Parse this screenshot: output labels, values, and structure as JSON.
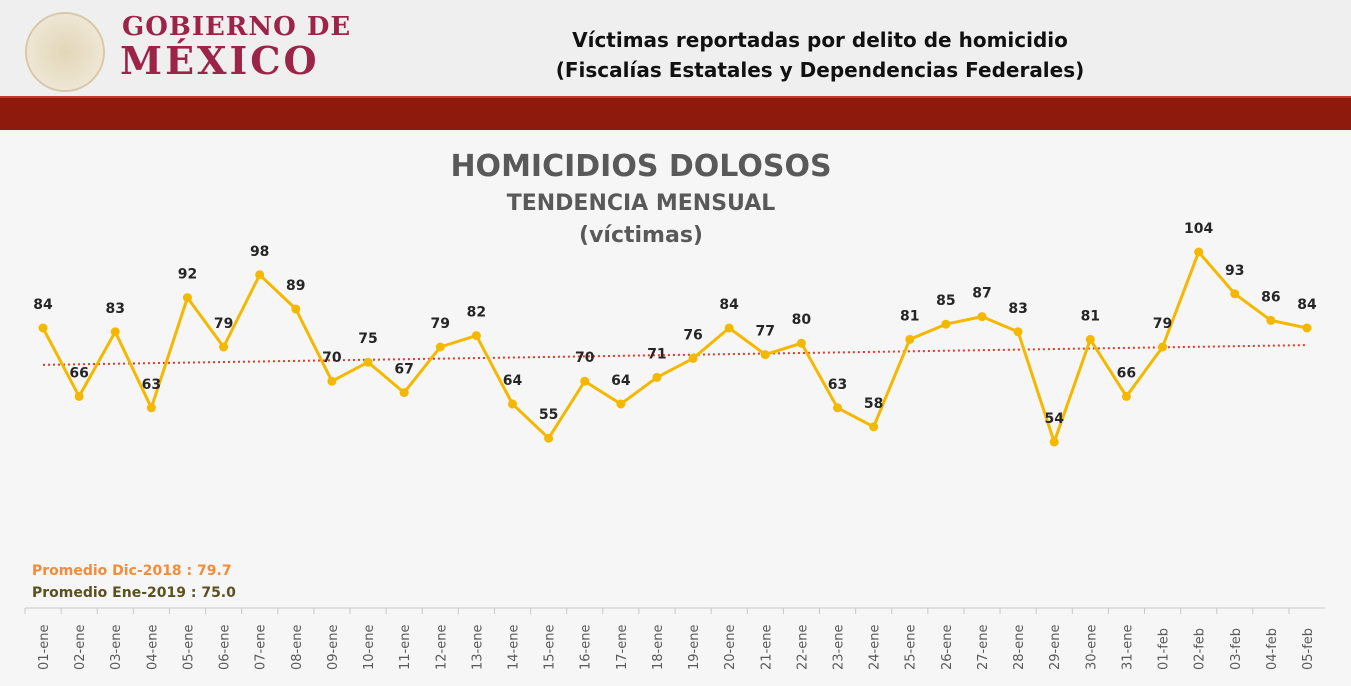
{
  "header": {
    "logo_line1": "GOBIERNO DE",
    "logo_line2": "MÉXICO",
    "title_line1": "Víctimas reportadas por delito de homicidio",
    "title_line2": "(Fiscalías Estatales y Dependencias Federales)"
  },
  "colors": {
    "line": "#f5b800",
    "trend": "#e03a2a",
    "brand": "#9d2449",
    "band": "#8e1a0e"
  },
  "chart_data": {
    "type": "line",
    "title": "HOMICIDIOS DOLOSOS",
    "subtitle": "TENDENCIA MENSUAL",
    "unit": "(víctimas)",
    "categories": [
      "01-ene",
      "02-ene",
      "03-ene",
      "04-ene",
      "05-ene",
      "06-ene",
      "07-ene",
      "08-ene",
      "09-ene",
      "10-ene",
      "11-ene",
      "12-ene",
      "13-ene",
      "14-ene",
      "15-ene",
      "16-ene",
      "17-ene",
      "18-ene",
      "19-ene",
      "20-ene",
      "21-ene",
      "22-ene",
      "23-ene",
      "24-ene",
      "25-ene",
      "26-ene",
      "27-ene",
      "28-ene",
      "29-ene",
      "30-ene",
      "31-ene",
      "01-feb",
      "02-feb",
      "03-feb",
      "04-feb",
      "05-feb"
    ],
    "values": [
      84,
      66,
      83,
      63,
      92,
      79,
      98,
      89,
      70,
      75,
      67,
      79,
      82,
      64,
      55,
      70,
      64,
      71,
      76,
      84,
      77,
      80,
      63,
      58,
      81,
      85,
      87,
      83,
      54,
      81,
      66,
      79,
      104,
      93,
      86,
      84
    ],
    "trendline": {
      "start": 74.3,
      "end": 79.5,
      "style": "dotted"
    },
    "ylim": [
      40,
      110
    ],
    "grid": false,
    "annotations": {
      "avg_dec": "Promedio Dic-2018  : 79.7",
      "avg_jan": "Promedio Ene-2019 : 75.0"
    }
  }
}
